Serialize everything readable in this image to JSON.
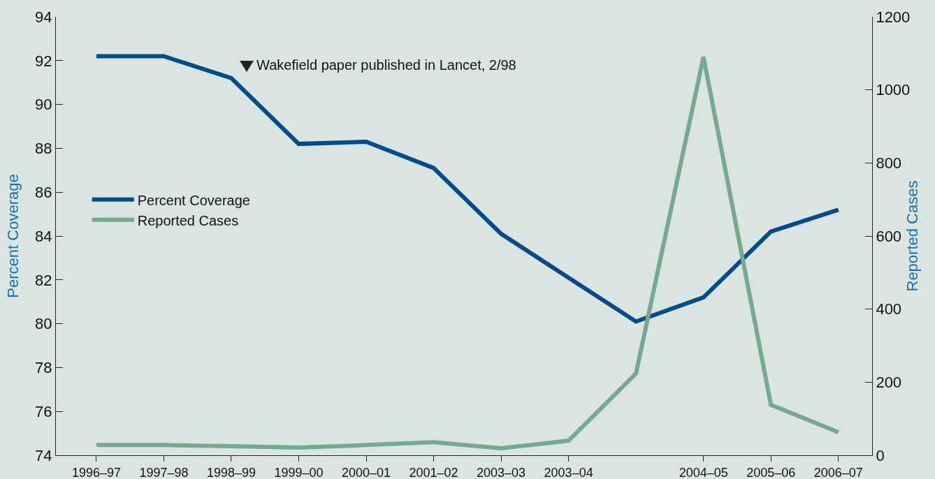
{
  "chart_data": {
    "type": "line",
    "ylabel": "Percent Coverage",
    "y2label": "Reported Cases",
    "categories": [
      "1996–97",
      "1997–98",
      "1998–99",
      "1999–00",
      "2000–01",
      "2001–02",
      "2003–03",
      "2003–04",
      null,
      "2004–05",
      "2005–06",
      "2006–07"
    ],
    "series": [
      {
        "name": "Percent Coverage",
        "color": "#004b8d",
        "values": [
          92.2,
          92.2,
          91.2,
          88.2,
          88.3,
          87.1,
          84.1,
          82.1,
          80.1,
          81.2,
          84.2,
          85.2
        ]
      },
      {
        "name": "Reported Cases",
        "color": "#76a894",
        "axis": "y2",
        "values": [
          28,
          28,
          25,
          21,
          28,
          36,
          19,
          40,
          224,
          1090,
          138,
          63
        ]
      }
    ],
    "ylim": [
      74,
      94
    ],
    "yticks": [
      74,
      76,
      78,
      80,
      82,
      84,
      86,
      88,
      90,
      92,
      94
    ],
    "y2lim": [
      0,
      1200
    ],
    "y2ticks": [
      0,
      200,
      400,
      600,
      800,
      1000,
      1200
    ],
    "annotations": [
      "Wakefield paper published in Lancet, 2/98"
    ],
    "grid": false,
    "legend": "left",
    "marker": "none",
    "line_style": "solid"
  }
}
